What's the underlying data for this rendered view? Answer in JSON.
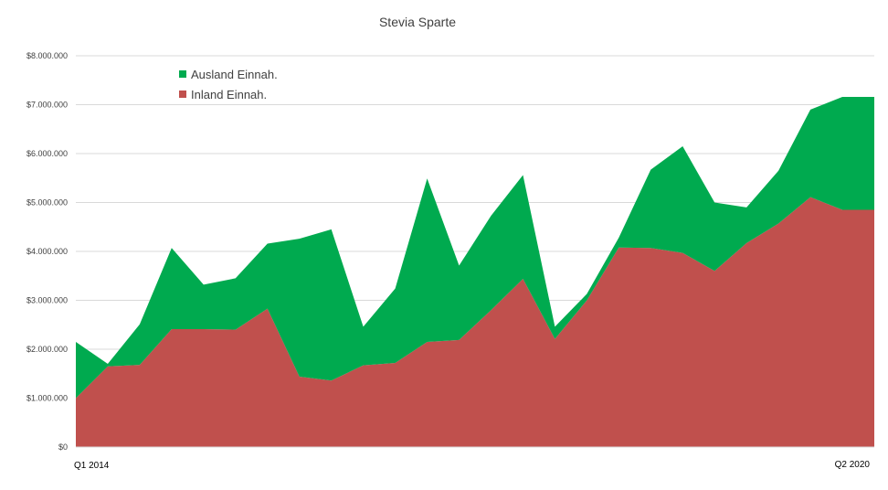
{
  "chart_data": {
    "type": "area",
    "stacked": true,
    "title": "Stevia Sparte",
    "xlabel": "",
    "ylabel": "",
    "ylim": [
      0,
      8000000
    ],
    "yticks": [
      0,
      1000000,
      2000000,
      3000000,
      4000000,
      5000000,
      6000000,
      7000000,
      8000000
    ],
    "ytick_labels": [
      "$0",
      "$1.000.000",
      "$2.000.000",
      "$3.000.000",
      "$4.000.000",
      "$5.000.000",
      "$6.000.000",
      "$7.000.000",
      "$8.000.000"
    ],
    "x_first_label": "Q1 2014",
    "x_last_label": "Q2 2020",
    "grid": true,
    "legend_position": "top-left",
    "series": [
      {
        "name": "Inland Einnah.",
        "color": "#C0504D",
        "values": [
          1000000,
          1650000,
          1680000,
          2410000,
          2410000,
          2400000,
          2830000,
          1440000,
          1360000,
          1670000,
          1720000,
          2150000,
          2190000,
          2800000,
          3440000,
          2210000,
          3000000,
          4080000,
          4070000,
          3970000,
          3600000,
          4170000,
          4570000,
          5110000,
          4850000,
          4850000
        ]
      },
      {
        "name": "Ausland Einnah.",
        "color": "#00AA4F",
        "values": [
          1150000,
          50000,
          830000,
          1660000,
          910000,
          1050000,
          1330000,
          2820000,
          3090000,
          790000,
          1520000,
          3340000,
          1520000,
          1930000,
          2120000,
          250000,
          130000,
          200000,
          1600000,
          2180000,
          1400000,
          730000,
          1080000,
          1790000,
          2310000,
          2310000
        ]
      }
    ]
  }
}
